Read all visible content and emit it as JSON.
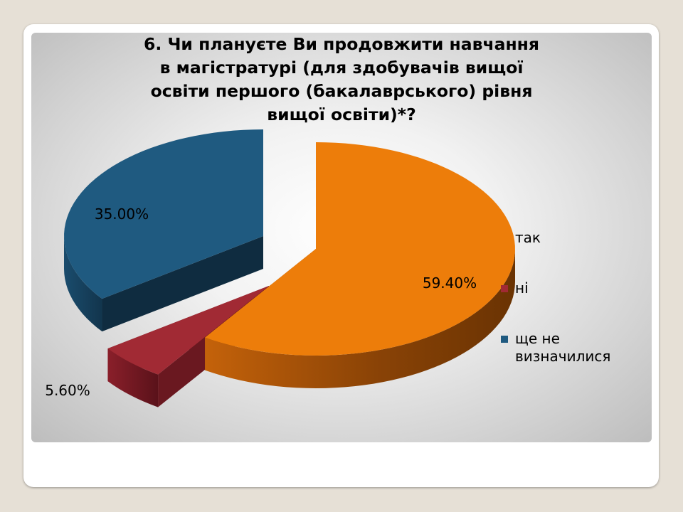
{
  "chart_data": {
    "type": "pie",
    "title": "6. Чи плануєте Ви продовжити навчання\nв магістратурі (для здобувачів вищої\nосвіти першого (бакалаврського) рівня\nвищої освіти)*?",
    "style": "3d-exploded",
    "legend_position": "right",
    "slices": [
      {
        "name": "так",
        "value": 59.4,
        "label": "59.40%",
        "color": "#ED7D0A"
      },
      {
        "name": "ні",
        "value": 5.6,
        "label": "5.60%",
        "color": "#A12A34"
      },
      {
        "name": "ще не визначилися",
        "value": 35.0,
        "label": "35.00%",
        "color": "#1F5A80"
      }
    ]
  }
}
